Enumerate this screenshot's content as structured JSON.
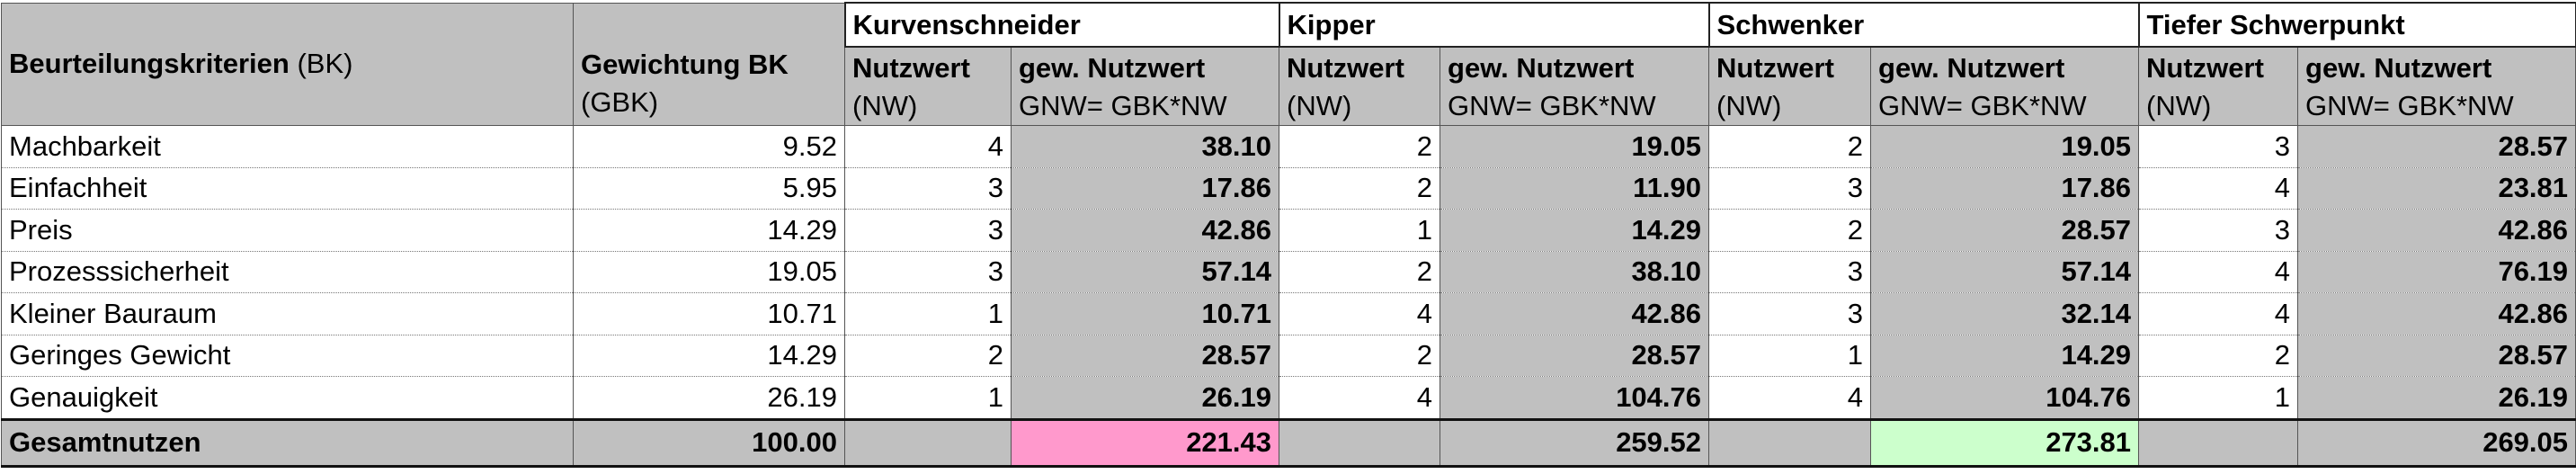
{
  "header": {
    "criteria_bold": "Beurteilungskriterien",
    "criteria_suffix": "(BK)",
    "weight_bold": "Gewichtung BK",
    "weight_sub": "(GBK)",
    "nw_bold": "Nutzwert",
    "nw_sub": "(NW)",
    "gnw_bold": "gew. Nutzwert",
    "gnw_sub": "GNW= GBK*NW",
    "groups": [
      "Kurvenschneider",
      "Kipper",
      "Schwenker",
      "Tiefer Schwerpunkt"
    ]
  },
  "rows": [
    {
      "name": "Machbarkeit",
      "weight": "9.52",
      "cells": [
        "4",
        "38.10",
        "2",
        "19.05",
        "2",
        "19.05",
        "3",
        "28.57"
      ]
    },
    {
      "name": "Einfachheit",
      "weight": "5.95",
      "cells": [
        "3",
        "17.86",
        "2",
        "11.90",
        "3",
        "17.86",
        "4",
        "23.81"
      ]
    },
    {
      "name": "Preis",
      "weight": "14.29",
      "cells": [
        "3",
        "42.86",
        "1",
        "14.29",
        "2",
        "28.57",
        "3",
        "42.86"
      ]
    },
    {
      "name": "Prozesssicherheit",
      "weight": "19.05",
      "cells": [
        "3",
        "57.14",
        "2",
        "38.10",
        "3",
        "57.14",
        "4",
        "76.19"
      ]
    },
    {
      "name": "Kleiner Bauraum",
      "weight": "10.71",
      "cells": [
        "1",
        "10.71",
        "4",
        "42.86",
        "3",
        "32.14",
        "4",
        "42.86"
      ]
    },
    {
      "name": "Geringes Gewicht",
      "weight": "14.29",
      "cells": [
        "2",
        "28.57",
        "2",
        "28.57",
        "1",
        "14.29",
        "2",
        "28.57"
      ]
    },
    {
      "name": "Genauigkeit",
      "weight": "26.19",
      "cells": [
        "1",
        "26.19",
        "4",
        "104.76",
        "4",
        "104.76",
        "1",
        "26.19"
      ]
    }
  ],
  "footer": {
    "label": "Gesamtnutzen",
    "weight_total": "100.00",
    "totals": [
      "221.43",
      "259.52",
      "273.81",
      "269.05"
    ]
  },
  "colors": {
    "header_gray": "#c0c0c0",
    "lowest_total": "#ff99cc",
    "highest_total": "#ccffcc"
  }
}
